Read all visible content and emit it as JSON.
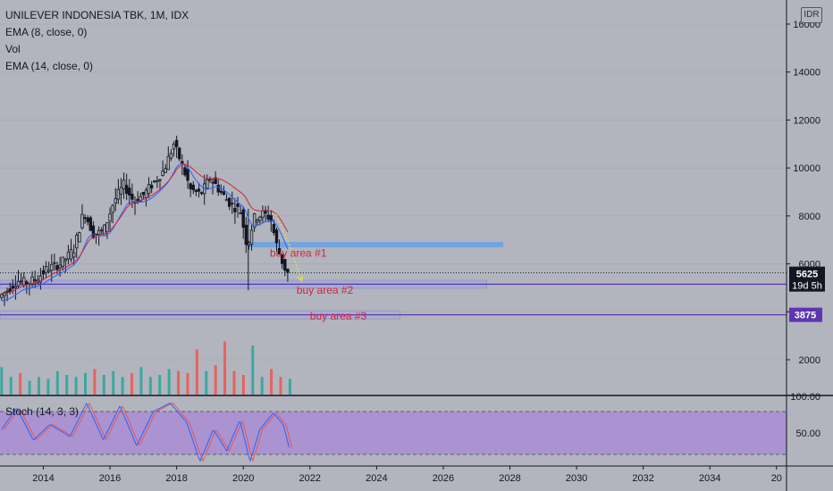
{
  "header": {
    "title": "UNILEVER INDONESIA TBK, 1M, IDX",
    "indicators": [
      "EMA (8, close, 0)",
      "Vol",
      "EMA (14, close, 0)"
    ],
    "currency": "IDR"
  },
  "oscillator": {
    "label": "Stoch (14, 3, 3)",
    "ticks": [
      "100.00",
      "50.00"
    ]
  },
  "colors": {
    "background": "#b2b5be",
    "candle": "#131722",
    "ema_fast": "#2962ff",
    "ema_slow": "#d3243a",
    "buy_zone_1": "#6fa3e0",
    "buy_zone_2": "#9aa8e0",
    "buy_zone_3": "#a9abd9",
    "level_line": "#5e35b1",
    "stoch_band": "#a98fd1",
    "stoch_k": "#2962ff",
    "stoch_d": "#ef5350",
    "vol_up": "#26a69a",
    "vol_down": "#ef5350"
  },
  "chart_data": {
    "type": "candlestick",
    "symbol": "UNILEVER INDONESIA TBK",
    "interval": "1M",
    "exchange": "IDX",
    "x_ticks": [
      "2014",
      "2016",
      "2018",
      "2020",
      "2022",
      "2024",
      "2026",
      "2028",
      "2030",
      "2032",
      "2034",
      "20"
    ],
    "y_ticks": [
      "2000",
      "4000",
      "6000",
      "8000",
      "10000",
      "12000",
      "14000",
      "16000"
    ],
    "ylim": [
      1000,
      16500
    ],
    "xlim": [
      2012.7,
      2036.3
    ],
    "price_series": [
      {
        "t": 2012.75,
        "p": 4600
      },
      {
        "t": 2013.0,
        "p": 4900
      },
      {
        "t": 2013.3,
        "p": 5300
      },
      {
        "t": 2013.6,
        "p": 5200
      },
      {
        "t": 2013.9,
        "p": 5400
      },
      {
        "t": 2014.2,
        "p": 5800
      },
      {
        "t": 2014.6,
        "p": 6000
      },
      {
        "t": 2015.0,
        "p": 6600
      },
      {
        "t": 2015.3,
        "p": 8200
      },
      {
        "t": 2015.6,
        "p": 7200
      },
      {
        "t": 2015.9,
        "p": 7400
      },
      {
        "t": 2016.2,
        "p": 8600
      },
      {
        "t": 2016.5,
        "p": 9300
      },
      {
        "t": 2016.8,
        "p": 8600
      },
      {
        "t": 2017.1,
        "p": 8900
      },
      {
        "t": 2017.4,
        "p": 9400
      },
      {
        "t": 2017.7,
        "p": 9900
      },
      {
        "t": 2018.0,
        "p": 11000
      },
      {
        "t": 2018.2,
        "p": 10300
      },
      {
        "t": 2018.5,
        "p": 9100
      },
      {
        "t": 2018.8,
        "p": 8900
      },
      {
        "t": 2019.1,
        "p": 9600
      },
      {
        "t": 2019.4,
        "p": 9000
      },
      {
        "t": 2019.7,
        "p": 8500
      },
      {
        "t": 2020.0,
        "p": 8200
      },
      {
        "t": 2020.2,
        "p": 6700
      },
      {
        "t": 2020.4,
        "p": 7900
      },
      {
        "t": 2020.7,
        "p": 8100
      },
      {
        "t": 2020.9,
        "p": 7900
      },
      {
        "t": 2021.1,
        "p": 6700
      },
      {
        "t": 2021.3,
        "p": 5900
      },
      {
        "t": 2021.4,
        "p": 5625
      }
    ],
    "current_price": {
      "label": "5625",
      "countdown": "19d 5h",
      "value": 5625
    },
    "buy_areas": [
      {
        "label": "buy area #1",
        "level": 6800,
        "from": 2020.2,
        "to": 2027.8
      },
      {
        "label": "buy area #2",
        "level": 5150,
        "from": 2012.7,
        "to": 2027.3
      },
      {
        "label": "buy area #3",
        "level": 3875,
        "from": 2012.7,
        "to": 2024.7
      }
    ],
    "level_labels": [
      {
        "label": "3875",
        "value": 3875
      }
    ],
    "volume_series": [
      14,
      9,
      11,
      7,
      9,
      8,
      12,
      10,
      9,
      11,
      13,
      10,
      12,
      9,
      11,
      14,
      9,
      10,
      13,
      12,
      11,
      23,
      12,
      15,
      27,
      12,
      10,
      25,
      9,
      13,
      9,
      8
    ],
    "stoch_series": [
      {
        "t": 2012.75,
        "v": 55
      },
      {
        "t": 2013.2,
        "v": 85
      },
      {
        "t": 2013.7,
        "v": 40
      },
      {
        "t": 2014.2,
        "v": 62
      },
      {
        "t": 2014.8,
        "v": 45
      },
      {
        "t": 2015.3,
        "v": 92
      },
      {
        "t": 2015.8,
        "v": 40
      },
      {
        "t": 2016.3,
        "v": 88
      },
      {
        "t": 2016.8,
        "v": 32
      },
      {
        "t": 2017.3,
        "v": 80
      },
      {
        "t": 2017.8,
        "v": 92
      },
      {
        "t": 2018.3,
        "v": 65
      },
      {
        "t": 2018.7,
        "v": 10
      },
      {
        "t": 2019.1,
        "v": 55
      },
      {
        "t": 2019.5,
        "v": 25
      },
      {
        "t": 2019.9,
        "v": 68
      },
      {
        "t": 2020.2,
        "v": 10
      },
      {
        "t": 2020.5,
        "v": 55
      },
      {
        "t": 2020.9,
        "v": 78
      },
      {
        "t": 2021.2,
        "v": 62
      },
      {
        "t": 2021.4,
        "v": 25
      }
    ]
  }
}
